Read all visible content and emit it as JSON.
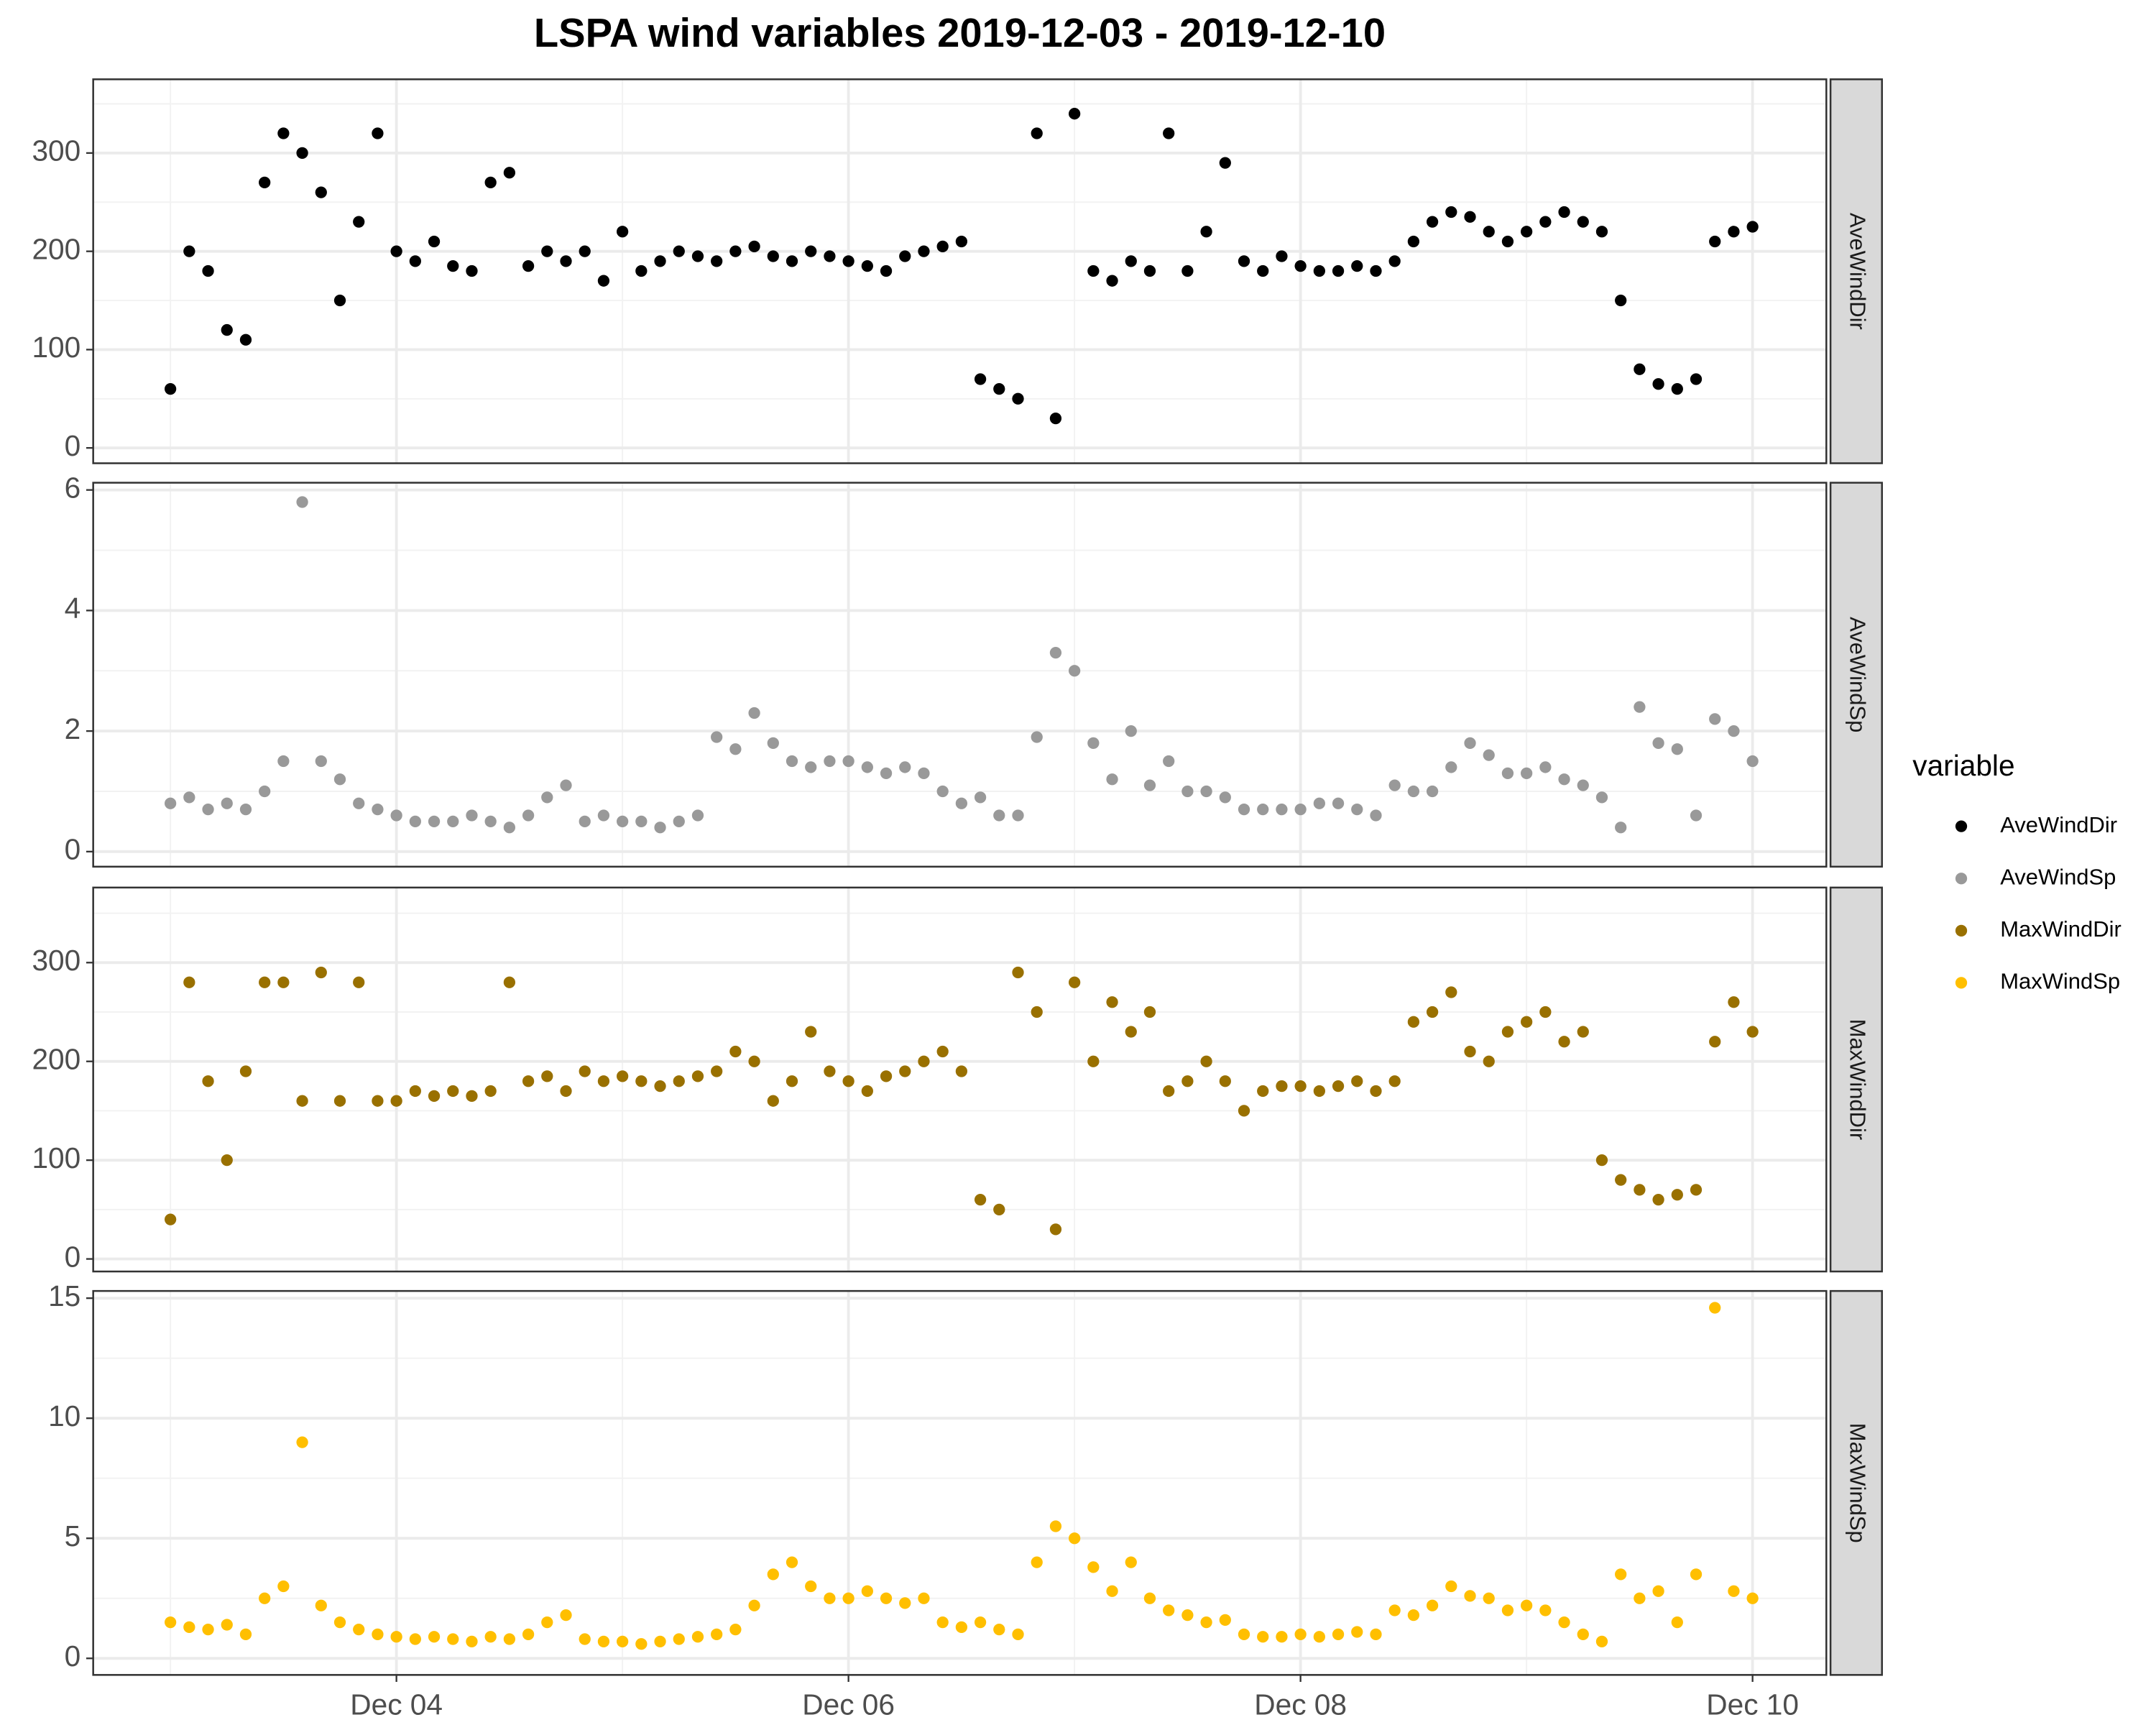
{
  "chart_data": {
    "type": "scatter",
    "title": "LSPA wind variables 2019-12-03 - 2019-12-10",
    "legend_title": "variable",
    "legend_position": "right",
    "grid": true,
    "xlim": [
      "2019-12-02T15:48",
      "2019-12-10T07:50"
    ],
    "xticks": [
      {
        "value": "2019-12-04T00:00",
        "label": "Dec 04"
      },
      {
        "value": "2019-12-06T00:00",
        "label": "Dec 06"
      },
      {
        "value": "2019-12-08T00:00",
        "label": "Dec 08"
      },
      {
        "value": "2019-12-10T00:00",
        "label": "Dec 10"
      }
    ],
    "x": [
      "2019-12-03T00:00",
      "2019-12-03T02:00",
      "2019-12-03T04:00",
      "2019-12-03T06:00",
      "2019-12-03T08:00",
      "2019-12-03T10:00",
      "2019-12-03T12:00",
      "2019-12-03T14:00",
      "2019-12-03T16:00",
      "2019-12-03T18:00",
      "2019-12-03T20:00",
      "2019-12-03T22:00",
      "2019-12-04T00:00",
      "2019-12-04T02:00",
      "2019-12-04T04:00",
      "2019-12-04T06:00",
      "2019-12-04T08:00",
      "2019-12-04T10:00",
      "2019-12-04T12:00",
      "2019-12-04T14:00",
      "2019-12-04T16:00",
      "2019-12-04T18:00",
      "2019-12-04T20:00",
      "2019-12-04T22:00",
      "2019-12-05T00:00",
      "2019-12-05T02:00",
      "2019-12-05T04:00",
      "2019-12-05T06:00",
      "2019-12-05T08:00",
      "2019-12-05T10:00",
      "2019-12-05T12:00",
      "2019-12-05T14:00",
      "2019-12-05T16:00",
      "2019-12-05T18:00",
      "2019-12-05T20:00",
      "2019-12-05T22:00",
      "2019-12-06T00:00",
      "2019-12-06T02:00",
      "2019-12-06T04:00",
      "2019-12-06T06:00",
      "2019-12-06T08:00",
      "2019-12-06T10:00",
      "2019-12-06T12:00",
      "2019-12-06T14:00",
      "2019-12-06T16:00",
      "2019-12-06T18:00",
      "2019-12-06T20:00",
      "2019-12-06T22:00",
      "2019-12-07T00:00",
      "2019-12-07T02:00",
      "2019-12-07T04:00",
      "2019-12-07T06:00",
      "2019-12-07T08:00",
      "2019-12-07T10:00",
      "2019-12-07T12:00",
      "2019-12-07T14:00",
      "2019-12-07T16:00",
      "2019-12-07T18:00",
      "2019-12-07T20:00",
      "2019-12-07T22:00",
      "2019-12-08T00:00",
      "2019-12-08T02:00",
      "2019-12-08T04:00",
      "2019-12-08T06:00",
      "2019-12-08T08:00",
      "2019-12-08T10:00",
      "2019-12-08T12:00",
      "2019-12-08T14:00",
      "2019-12-08T16:00",
      "2019-12-08T18:00",
      "2019-12-08T20:00",
      "2019-12-08T22:00",
      "2019-12-09T00:00",
      "2019-12-09T02:00",
      "2019-12-09T04:00",
      "2019-12-09T06:00",
      "2019-12-09T08:00",
      "2019-12-09T10:00",
      "2019-12-09T12:00",
      "2019-12-09T14:00",
      "2019-12-09T16:00",
      "2019-12-09T18:00",
      "2019-12-09T20:00",
      "2019-12-09T22:00",
      "2019-12-10T00:00"
    ],
    "series": [
      {
        "name": "AveWindDir",
        "color": "#000000",
        "ylim": [
          -15.6,
          375
        ],
        "yticks": [
          0,
          100,
          200,
          300
        ],
        "values": [
          60,
          200,
          180,
          120,
          110,
          270,
          320,
          300,
          260,
          150,
          230,
          320,
          200,
          190,
          210,
          185,
          180,
          270,
          280,
          185,
          200,
          190,
          200,
          170,
          220,
          180,
          190,
          200,
          195,
          190,
          200,
          205,
          195,
          190,
          200,
          195,
          190,
          185,
          180,
          195,
          200,
          205,
          210,
          70,
          60,
          50,
          320,
          30,
          340,
          180,
          170,
          190,
          180,
          320,
          180,
          220,
          290,
          190,
          180,
          195,
          185,
          180,
          180,
          185,
          180,
          190,
          210,
          230,
          240,
          235,
          220,
          210,
          220,
          230,
          240,
          230,
          220,
          150,
          80,
          65,
          60,
          70,
          210,
          220,
          225
        ]
      },
      {
        "name": "AveWindSp",
        "color": "#999999",
        "ylim": [
          -0.25,
          6.12
        ],
        "yticks": [
          0,
          2,
          4,
          6
        ],
        "values": [
          0.8,
          0.9,
          0.7,
          0.8,
          0.7,
          1.0,
          1.5,
          5.8,
          1.5,
          1.2,
          0.8,
          0.7,
          0.6,
          0.5,
          0.5,
          0.5,
          0.6,
          0.5,
          0.4,
          0.6,
          0.9,
          1.1,
          0.5,
          0.6,
          0.5,
          0.5,
          0.4,
          0.5,
          0.6,
          1.9,
          1.7,
          2.3,
          1.8,
          1.5,
          1.4,
          1.5,
          1.5,
          1.4,
          1.3,
          1.4,
          1.3,
          1.0,
          0.8,
          0.9,
          0.6,
          0.6,
          1.9,
          3.3,
          3.0,
          1.8,
          1.2,
          2.0,
          1.1,
          1.5,
          1.0,
          1.0,
          0.9,
          0.7,
          0.7,
          0.7,
          0.7,
          0.8,
          0.8,
          0.7,
          0.6,
          1.1,
          1.0,
          1.0,
          1.4,
          1.8,
          1.6,
          1.3,
          1.3,
          1.4,
          1.2,
          1.1,
          0.9,
          0.4,
          2.4,
          1.8,
          1.7,
          0.6,
          2.2,
          2.0,
          1.5
        ]
      },
      {
        "name": "MaxWindDir",
        "color": "#997000",
        "ylim": [
          -12.7,
          376
        ],
        "yticks": [
          0,
          100,
          200,
          300
        ],
        "values": [
          40,
          280,
          180,
          100,
          190,
          280,
          280,
          160,
          290,
          160,
          280,
          160,
          160,
          170,
          165,
          170,
          165,
          170,
          280,
          180,
          185,
          170,
          190,
          180,
          185,
          180,
          175,
          180,
          185,
          190,
          210,
          200,
          160,
          180,
          230,
          190,
          180,
          170,
          185,
          190,
          200,
          210,
          190,
          60,
          50,
          290,
          250,
          30,
          280,
          200,
          260,
          230,
          250,
          170,
          180,
          200,
          180,
          150,
          170,
          175,
          175,
          170,
          175,
          180,
          170,
          180,
          240,
          250,
          270,
          210,
          200,
          230,
          240,
          250,
          220,
          230,
          100,
          80,
          70,
          60,
          65,
          70,
          220,
          260,
          230
        ]
      },
      {
        "name": "MaxWindSp",
        "color": "#FFBF00",
        "ylim": [
          -0.69,
          15.3
        ],
        "yticks": [
          0,
          5,
          10,
          15
        ],
        "values": [
          1.5,
          1.3,
          1.2,
          1.4,
          1.0,
          2.5,
          3.0,
          9.0,
          2.2,
          1.5,
          1.2,
          1.0,
          0.9,
          0.8,
          0.9,
          0.8,
          0.7,
          0.9,
          0.8,
          1.0,
          1.5,
          1.8,
          0.8,
          0.7,
          0.7,
          0.6,
          0.7,
          0.8,
          0.9,
          1.0,
          1.2,
          2.2,
          3.5,
          4.0,
          3.0,
          2.5,
          2.5,
          2.8,
          2.5,
          2.3,
          2.5,
          1.5,
          1.3,
          1.5,
          1.2,
          1.0,
          4.0,
          5.5,
          5.0,
          3.8,
          2.8,
          4.0,
          2.5,
          2.0,
          1.8,
          1.5,
          1.6,
          1.0,
          0.9,
          0.9,
          1.0,
          0.9,
          1.0,
          1.1,
          1.0,
          2.0,
          1.8,
          2.2,
          3.0,
          2.6,
          2.5,
          2.0,
          2.2,
          2.0,
          1.5,
          1.0,
          0.7,
          3.5,
          2.5,
          2.8,
          1.5,
          3.5,
          14.6,
          2.8,
          2.5
        ]
      }
    ]
  }
}
